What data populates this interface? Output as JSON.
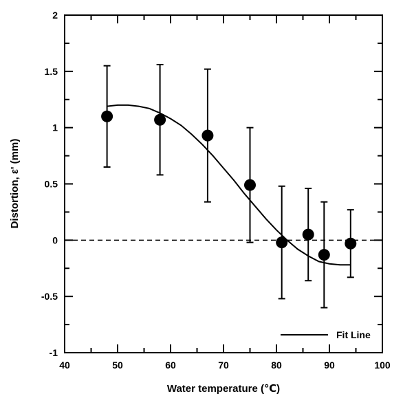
{
  "chart_data": {
    "type": "scatter",
    "xlabel": "Water temperature (℃)",
    "ylabel": "Distortion, ε' (mm)",
    "xlim": [
      40,
      100
    ],
    "ylim": [
      -1,
      2
    ],
    "xticks": [
      40,
      50,
      60,
      70,
      80,
      90,
      100
    ],
    "yticks": [
      -1,
      -0.5,
      0,
      0.5,
      1,
      1.5,
      2
    ],
    "xtick_labels": [
      "40",
      "50",
      "60",
      "70",
      "80",
      "90",
      "100"
    ],
    "ytick_labels": [
      "-1",
      "-0.5",
      "0",
      "0.5",
      "1",
      "1.5",
      "2"
    ],
    "grid": false,
    "legend_position": "bottom-right",
    "series": [
      {
        "type": "scatter-errorbar",
        "x": [
          48,
          58,
          67,
          75,
          81,
          86,
          89,
          94
        ],
        "y": [
          1.1,
          1.07,
          0.93,
          0.49,
          -0.02,
          0.05,
          -0.13,
          -0.03
        ],
        "y_upper": [
          1.55,
          1.56,
          1.52,
          1.0,
          0.48,
          0.46,
          0.34,
          0.27
        ],
        "y_lower": [
          0.65,
          0.58,
          0.34,
          -0.02,
          -0.52,
          -0.36,
          -0.6,
          -0.33
        ],
        "color": "#000000"
      },
      {
        "name": "Fit Line",
        "type": "line",
        "x": [
          48,
          50,
          52,
          54,
          56,
          58,
          60,
          62,
          64,
          66,
          68,
          70,
          72,
          74,
          76,
          78,
          80,
          82,
          84,
          86,
          88,
          90,
          92,
          94
        ],
        "y": [
          1.19,
          1.2,
          1.2,
          1.19,
          1.17,
          1.13,
          1.08,
          1.02,
          0.94,
          0.85,
          0.75,
          0.64,
          0.53,
          0.41,
          0.3,
          0.19,
          0.09,
          0.0,
          -0.08,
          -0.14,
          -0.19,
          -0.21,
          -0.22,
          -0.22
        ],
        "color": "#000000"
      },
      {
        "type": "reference-line",
        "y": 0,
        "style": "dashed",
        "color": "#000000"
      }
    ]
  }
}
